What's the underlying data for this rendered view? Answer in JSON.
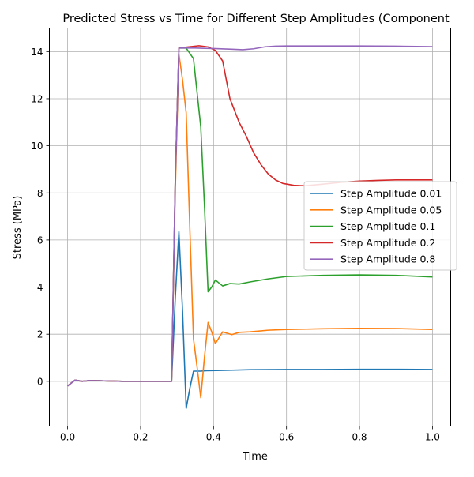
{
  "chart_data": {
    "type": "line",
    "title": "Predicted Stress vs Time for Different Step Amplitudes (Component",
    "xlabel": "Time",
    "ylabel": "Stress (MPa)",
    "xlim": [
      -0.05,
      1.05
    ],
    "ylim": [
      -1.9,
      15.0
    ],
    "xticks": [
      0.0,
      0.2,
      0.4,
      0.6,
      0.8,
      1.0
    ],
    "xtick_labels": [
      "0.0",
      "0.2",
      "0.4",
      "0.6",
      "0.8",
      "1.0"
    ],
    "yticks": [
      0,
      2,
      4,
      6,
      8,
      10,
      12,
      14
    ],
    "ytick_labels": [
      "0",
      "2",
      "4",
      "6",
      "8",
      "10",
      "12",
      "14"
    ],
    "grid": true,
    "legend_position": "center-right",
    "series": [
      {
        "name": "Step Amplitude 0.01",
        "color": "#1f77b4",
        "points": [
          [
            0.0,
            -0.2
          ],
          [
            0.02,
            0.05
          ],
          [
            0.04,
            0.0
          ],
          [
            0.06,
            0.03
          ],
          [
            0.1,
            0.02
          ],
          [
            0.15,
            0.0
          ],
          [
            0.2,
            0.0
          ],
          [
            0.25,
            0.0
          ],
          [
            0.285,
            0.0
          ],
          [
            0.295,
            3.5
          ],
          [
            0.305,
            6.35
          ],
          [
            0.315,
            3.0
          ],
          [
            0.325,
            -1.15
          ],
          [
            0.335,
            -0.3
          ],
          [
            0.345,
            0.43
          ],
          [
            0.365,
            0.43
          ],
          [
            0.38,
            0.45
          ],
          [
            0.42,
            0.46
          ],
          [
            0.5,
            0.49
          ],
          [
            0.6,
            0.5
          ],
          [
            0.7,
            0.5
          ],
          [
            0.8,
            0.51
          ],
          [
            0.9,
            0.51
          ],
          [
            1.0,
            0.5
          ]
        ]
      },
      {
        "name": "Step Amplitude 0.05",
        "color": "#ff7f0e",
        "points": [
          [
            0.0,
            -0.2
          ],
          [
            0.02,
            0.05
          ],
          [
            0.04,
            0.0
          ],
          [
            0.06,
            0.03
          ],
          [
            0.1,
            0.02
          ],
          [
            0.15,
            0.0
          ],
          [
            0.2,
            0.0
          ],
          [
            0.25,
            0.0
          ],
          [
            0.285,
            0.0
          ],
          [
            0.295,
            8.0
          ],
          [
            0.305,
            13.9
          ],
          [
            0.315,
            12.8
          ],
          [
            0.325,
            11.4
          ],
          [
            0.335,
            6.5
          ],
          [
            0.345,
            1.8
          ],
          [
            0.355,
            0.6
          ],
          [
            0.365,
            -0.7
          ],
          [
            0.375,
            1.0
          ],
          [
            0.385,
            2.5
          ],
          [
            0.395,
            2.1
          ],
          [
            0.405,
            1.6
          ],
          [
            0.415,
            1.85
          ],
          [
            0.425,
            2.1
          ],
          [
            0.45,
            1.98
          ],
          [
            0.47,
            2.08
          ],
          [
            0.5,
            2.1
          ],
          [
            0.55,
            2.17
          ],
          [
            0.6,
            2.2
          ],
          [
            0.7,
            2.23
          ],
          [
            0.8,
            2.25
          ],
          [
            0.9,
            2.24
          ],
          [
            1.0,
            2.2
          ]
        ]
      },
      {
        "name": "Step Amplitude 0.1",
        "color": "#2ca02c",
        "points": [
          [
            0.0,
            -0.2
          ],
          [
            0.02,
            0.05
          ],
          [
            0.04,
            0.0
          ],
          [
            0.06,
            0.03
          ],
          [
            0.1,
            0.02
          ],
          [
            0.15,
            0.0
          ],
          [
            0.2,
            0.0
          ],
          [
            0.25,
            0.0
          ],
          [
            0.285,
            0.0
          ],
          [
            0.295,
            8.5
          ],
          [
            0.305,
            14.15
          ],
          [
            0.325,
            14.15
          ],
          [
            0.345,
            13.7
          ],
          [
            0.365,
            10.8
          ],
          [
            0.375,
            7.5
          ],
          [
            0.385,
            3.8
          ],
          [
            0.395,
            4.0
          ],
          [
            0.405,
            4.3
          ],
          [
            0.425,
            4.05
          ],
          [
            0.445,
            4.15
          ],
          [
            0.47,
            4.13
          ],
          [
            0.5,
            4.22
          ],
          [
            0.55,
            4.35
          ],
          [
            0.6,
            4.45
          ],
          [
            0.7,
            4.5
          ],
          [
            0.8,
            4.52
          ],
          [
            0.9,
            4.5
          ],
          [
            1.0,
            4.43
          ]
        ]
      },
      {
        "name": "Step Amplitude 0.2",
        "color": "#d62728",
        "points": [
          [
            0.0,
            -0.2
          ],
          [
            0.02,
            0.05
          ],
          [
            0.04,
            0.0
          ],
          [
            0.06,
            0.03
          ],
          [
            0.1,
            0.02
          ],
          [
            0.15,
            0.0
          ],
          [
            0.2,
            0.0
          ],
          [
            0.25,
            0.0
          ],
          [
            0.285,
            0.0
          ],
          [
            0.295,
            8.5
          ],
          [
            0.305,
            14.15
          ],
          [
            0.33,
            14.2
          ],
          [
            0.36,
            14.25
          ],
          [
            0.385,
            14.2
          ],
          [
            0.405,
            14.05
          ],
          [
            0.425,
            13.6
          ],
          [
            0.445,
            12.0
          ],
          [
            0.47,
            11.0
          ],
          [
            0.49,
            10.4
          ],
          [
            0.51,
            9.7
          ],
          [
            0.53,
            9.2
          ],
          [
            0.55,
            8.8
          ],
          [
            0.57,
            8.55
          ],
          [
            0.59,
            8.4
          ],
          [
            0.62,
            8.32
          ],
          [
            0.65,
            8.3
          ],
          [
            0.7,
            8.37
          ],
          [
            0.75,
            8.45
          ],
          [
            0.8,
            8.5
          ],
          [
            0.85,
            8.53
          ],
          [
            0.9,
            8.55
          ],
          [
            1.0,
            8.55
          ]
        ]
      },
      {
        "name": "Step Amplitude 0.8",
        "color": "#9467bd",
        "points": [
          [
            0.0,
            -0.2
          ],
          [
            0.02,
            0.05
          ],
          [
            0.04,
            0.0
          ],
          [
            0.06,
            0.03
          ],
          [
            0.1,
            0.02
          ],
          [
            0.15,
            0.0
          ],
          [
            0.2,
            0.0
          ],
          [
            0.25,
            0.0
          ],
          [
            0.285,
            0.0
          ],
          [
            0.295,
            8.5
          ],
          [
            0.305,
            14.15
          ],
          [
            0.35,
            14.15
          ],
          [
            0.4,
            14.13
          ],
          [
            0.45,
            14.1
          ],
          [
            0.48,
            14.08
          ],
          [
            0.51,
            14.12
          ],
          [
            0.54,
            14.2
          ],
          [
            0.57,
            14.23
          ],
          [
            0.6,
            14.24
          ],
          [
            0.7,
            14.24
          ],
          [
            0.8,
            14.24
          ],
          [
            0.9,
            14.23
          ],
          [
            1.0,
            14.21
          ]
        ]
      }
    ]
  }
}
